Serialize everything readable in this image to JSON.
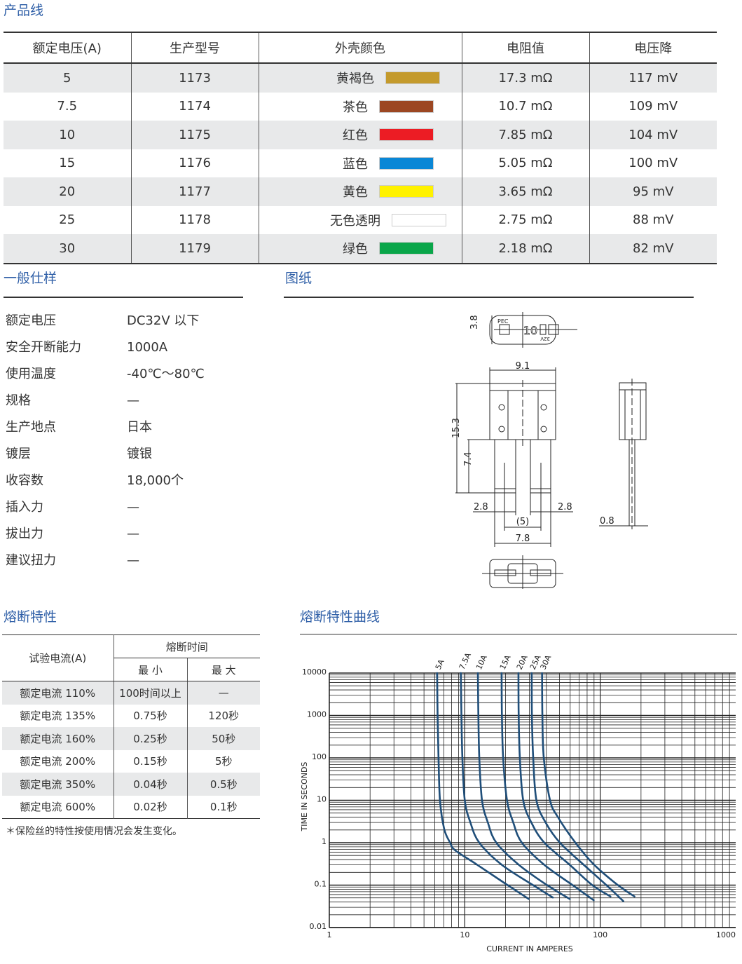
{
  "product_line": {
    "title": "产品线",
    "headers": [
      "额定电压(A)",
      "生产型号",
      "外壳颜色",
      "电阻值",
      "电压降"
    ],
    "rows": [
      {
        "rating": "5",
        "model": "1173",
        "color_name": "黄褐色",
        "color": "#c49a2c",
        "resistance": "17.3 mΩ",
        "drop": "117 mV"
      },
      {
        "rating": "7.5",
        "model": "1174",
        "color_name": "茶色",
        "color": "#9c4722",
        "resistance": "10.7 mΩ",
        "drop": "109 mV"
      },
      {
        "rating": "10",
        "model": "1175",
        "color_name": "红色",
        "color": "#ec1c24",
        "resistance": "7.85 mΩ",
        "drop": "104 mV"
      },
      {
        "rating": "15",
        "model": "1176",
        "color_name": "蓝色",
        "color": "#0a87d6",
        "resistance": "5.05 mΩ",
        "drop": "100 mV"
      },
      {
        "rating": "20",
        "model": "1177",
        "color_name": "黄色",
        "color": "#fff200",
        "resistance": "3.65 mΩ",
        "drop": "95 mV"
      },
      {
        "rating": "25",
        "model": "1178",
        "color_name": "无色透明",
        "color": "#ffffff",
        "resistance": "2.75 mΩ",
        "drop": "88 mV"
      },
      {
        "rating": "30",
        "model": "1179",
        "color_name": "绿色",
        "color": "#0aa64a",
        "resistance": "2.18 mΩ",
        "drop": "82 mV"
      }
    ]
  },
  "general_spec": {
    "title": "一般仕样",
    "rows": [
      {
        "label": "额定电压",
        "value": "DC32V 以下"
      },
      {
        "label": "安全开断能力",
        "value": "1000A"
      },
      {
        "label": "使用温度",
        "value": "-40℃～80℃"
      },
      {
        "label": "规格",
        "value": "—"
      },
      {
        "label": "生产地点",
        "value": "日本"
      },
      {
        "label": "镀层",
        "value": "镀银"
      },
      {
        "label": "收容数",
        "value": "18,000个"
      },
      {
        "label": "插入力",
        "value": "—"
      },
      {
        "label": "拔出力",
        "value": "—"
      },
      {
        "label": "建议扭力",
        "value": "—"
      }
    ]
  },
  "drawing": {
    "title": "图纸",
    "marking": {
      "brand": "PEC",
      "rating": "10",
      "voltage": "32V"
    },
    "dims": {
      "height_top": "3.8",
      "width": "9.1",
      "total_length": "15.3",
      "leg_length": "7.4",
      "leg_width_left": "2.8",
      "leg_width_right": "2.8",
      "pitch": "(5)",
      "leg_span": "7.8",
      "thickness": "0.8"
    }
  },
  "fuse_characteristics": {
    "title": "熔断特性",
    "header_test": "试验电流(A)",
    "header_time": "熔断时间",
    "header_min": "最 小",
    "header_max": "最 大",
    "rows": [
      {
        "current": "额定电流 110%",
        "min": "100时间以上",
        "max": "—"
      },
      {
        "current": "额定电流 135%",
        "min": "0.75秒",
        "max": "120秒"
      },
      {
        "current": "额定电流 160%",
        "min": "0.25秒",
        "max": "50秒"
      },
      {
        "current": "额定电流 200%",
        "min": "0.15秒",
        "max": "5秒"
      },
      {
        "current": "额定电流 350%",
        "min": "0.04秒",
        "max": "0.5秒"
      },
      {
        "current": "额定电流 600%",
        "min": "0.02秒",
        "max": "0.1秒"
      }
    ],
    "note": "＊保险丝的特性按使用情况会发生变化。"
  },
  "curve_title": "熔断特性曲线",
  "chart_data": {
    "type": "line",
    "xlabel": "CURRENT IN AMPERES",
    "ylabel": "TIME IN SECONDS",
    "xscale": "log",
    "yscale": "log",
    "xlim": [
      1,
      1000
    ],
    "ylim": [
      0.01,
      10000
    ],
    "xticks": [
      "1",
      "10",
      "100",
      "1000"
    ],
    "yticks": [
      "10000",
      "1000",
      "100",
      "10",
      "1",
      "0.1",
      "0.01"
    ],
    "grid": true,
    "line_color": "#1f4e79",
    "series": [
      {
        "name": "5A",
        "points": [
          [
            6.25,
            10000
          ],
          [
            6.3,
            1000
          ],
          [
            6.4,
            100
          ],
          [
            6.56,
            10
          ],
          [
            7.05,
            2.1
          ],
          [
            7.8,
            1
          ],
          [
            8.5,
            0.66
          ],
          [
            12.2,
            0.31
          ],
          [
            20.7,
            0.1
          ],
          [
            29.7,
            0.047
          ]
        ]
      },
      {
        "name": "7.5A",
        "points": [
          [
            9.35,
            10000
          ],
          [
            9.45,
            1000
          ],
          [
            9.6,
            100
          ],
          [
            10,
            10
          ],
          [
            11,
            3
          ],
          [
            12.8,
            1
          ],
          [
            18.8,
            0.3
          ],
          [
            31.9,
            0.1
          ],
          [
            44.7,
            0.051
          ]
        ]
      },
      {
        "name": "10A",
        "points": [
          [
            12.5,
            10000
          ],
          [
            12.6,
            1000
          ],
          [
            12.8,
            100
          ],
          [
            13.4,
            10
          ],
          [
            14.8,
            3
          ],
          [
            17.1,
            1
          ],
          [
            25.1,
            0.3
          ],
          [
            40.5,
            0.1
          ],
          [
            59.6,
            0.047
          ]
        ]
      },
      {
        "name": "15A",
        "points": [
          [
            18.7,
            10000
          ],
          [
            18.8,
            1000
          ],
          [
            19.2,
            100
          ],
          [
            20.5,
            10
          ],
          [
            22.8,
            3
          ],
          [
            26.4,
            1
          ],
          [
            38.7,
            0.3
          ],
          [
            62.5,
            0.1
          ],
          [
            89.5,
            0.044
          ]
        ]
      },
      {
        "name": "20A",
        "points": [
          [
            24.9,
            10000
          ],
          [
            25,
            1000
          ],
          [
            25.5,
            100
          ],
          [
            27,
            10
          ],
          [
            31,
            3
          ],
          [
            38.7,
            1
          ],
          [
            59.6,
            0.3
          ],
          [
            87.4,
            0.1
          ],
          [
            119,
            0.054
          ]
        ]
      },
      {
        "name": "25A",
        "points": [
          [
            31.2,
            10000
          ],
          [
            31.3,
            1000
          ],
          [
            32,
            100
          ],
          [
            33.8,
            10
          ],
          [
            39.5,
            3
          ],
          [
            50.4,
            1
          ],
          [
            75.7,
            0.3
          ],
          [
            111,
            0.1
          ],
          [
            148,
            0.042
          ]
        ]
      },
      {
        "name": "30A",
        "points": [
          [
            37.2,
            10000
          ],
          [
            37.4,
            1000
          ],
          [
            38.3,
            100
          ],
          [
            42.6,
            10
          ],
          [
            49,
            3.9
          ],
          [
            65.6,
            1
          ],
          [
            89.5,
            0.31
          ],
          [
            135,
            0.1
          ],
          [
            179,
            0.054
          ]
        ]
      }
    ]
  }
}
